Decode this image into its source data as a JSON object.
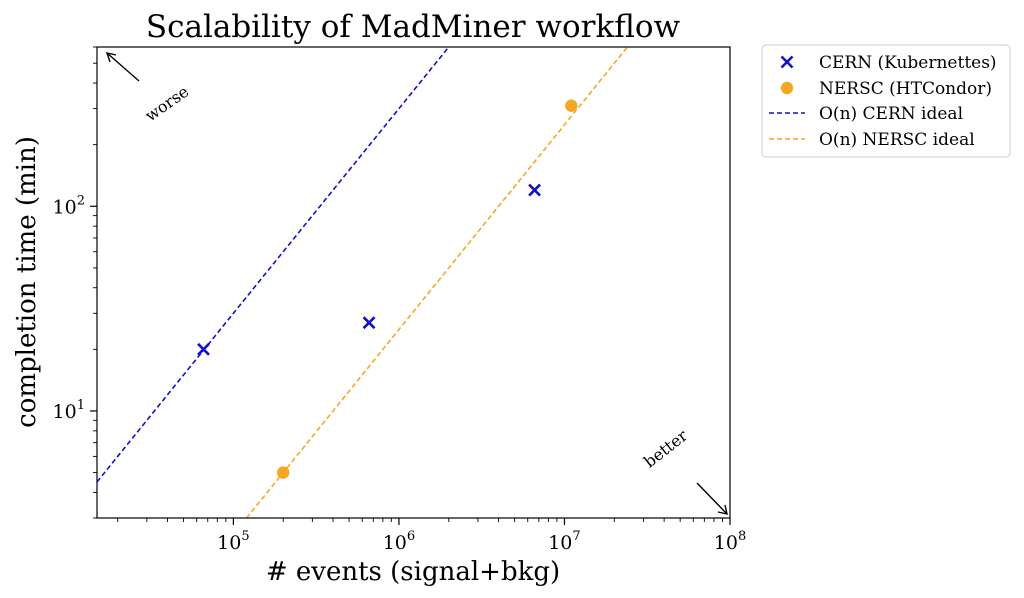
{
  "chart_data": {
    "type": "scatter",
    "title": "Scalability of MadMiner workflow",
    "xlabel": "# events (signal+bkg)",
    "ylabel": "completion time (min)",
    "xscale": "log",
    "yscale": "log",
    "xlim": [
      15000,
      100000000
    ],
    "ylim": [
      3,
      600
    ],
    "x_ticks": [
      {
        "base": "10",
        "exp": "5",
        "value": 100000
      },
      {
        "base": "10",
        "exp": "6",
        "value": 1000000
      },
      {
        "base": "10",
        "exp": "7",
        "value": 10000000
      },
      {
        "base": "10",
        "exp": "8",
        "value": 100000000
      }
    ],
    "y_ticks": [
      {
        "base": "10",
        "exp": "1",
        "value": 10
      },
      {
        "base": "10",
        "exp": "2",
        "value": 100
      }
    ],
    "grid": false,
    "legend_position": "outside-right",
    "series": [
      {
        "name": "CERN (Kubernettes)",
        "kind": "scatter",
        "marker": "x",
        "color": "#1010c8",
        "points": [
          {
            "x": 66000,
            "y": 20
          },
          {
            "x": 660000,
            "y": 27
          },
          {
            "x": 6600000,
            "y": 120
          }
        ]
      },
      {
        "name": "NERSC (HTCondor)",
        "kind": "scatter",
        "marker": "circle",
        "color": "#f5a623",
        "points": [
          {
            "x": 200000,
            "y": 5
          },
          {
            "x": 11000000,
            "y": 310
          }
        ]
      },
      {
        "name": "O(n) CERN ideal",
        "kind": "line",
        "style": "dashed",
        "color": "#1010c8",
        "points": [
          {
            "x": 15000,
            "y": 4.5
          },
          {
            "x": 2000000,
            "y": 600
          }
        ]
      },
      {
        "name": "O(n) NERSC ideal",
        "kind": "line",
        "style": "dashed",
        "color": "#f5a623",
        "points": [
          {
            "x": 120000,
            "y": 3
          },
          {
            "x": 24000000,
            "y": 600
          }
        ]
      }
    ],
    "annotations": [
      {
        "text": "worse",
        "direction": "up-left",
        "location": "top-left"
      },
      {
        "text": "better",
        "direction": "down-right",
        "location": "bottom-right"
      }
    ]
  }
}
